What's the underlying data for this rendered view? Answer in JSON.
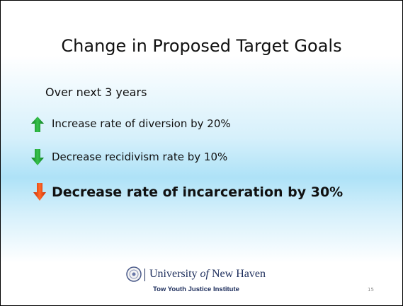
{
  "slide": {
    "title": "Change in Proposed Target Goals",
    "subtitle": "Over next 3 years",
    "items": [
      {
        "text": "Increase rate of diversion by 20%"
      },
      {
        "text": "Decrease recidivism rate by 10%"
      },
      {
        "text": "Decrease rate of incarceration by 30%"
      }
    ],
    "footer": {
      "university": [
        "University",
        "of",
        "New Haven"
      ],
      "institute": "Tow Youth Justice Institute",
      "page_number": "15"
    }
  }
}
